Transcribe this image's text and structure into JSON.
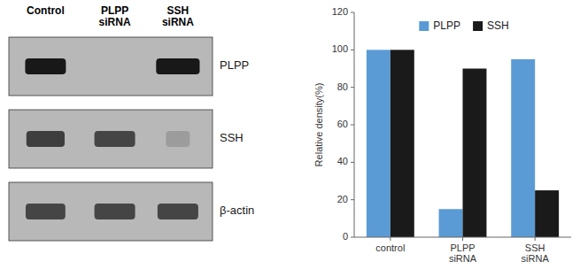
{
  "chart_data": [
    {
      "type": "blot",
      "categories": [
        "Control",
        "PLPP\nsiRNA",
        "SSH\nsiRNA"
      ],
      "annotations": [
        "PLPP",
        "SSH",
        "β-actin"
      ]
    },
    {
      "type": "bar",
      "categories": [
        "control",
        "PLPP\nsiRNA",
        "SSH\nsiRNA"
      ],
      "series": [
        {
          "name": "PLPP",
          "color": "#5B9BD5",
          "values": [
            100,
            15,
            95
          ]
        },
        {
          "name": "SSH",
          "color": "#1a1a1a",
          "values": [
            100,
            90,
            25
          ]
        }
      ],
      "y_label": "Relative density(%)",
      "ylim": [
        0,
        120
      ],
      "yticks": [
        0,
        20,
        40,
        60,
        80,
        100,
        120
      ],
      "legend": "upper center",
      "grid": false
    }
  ]
}
